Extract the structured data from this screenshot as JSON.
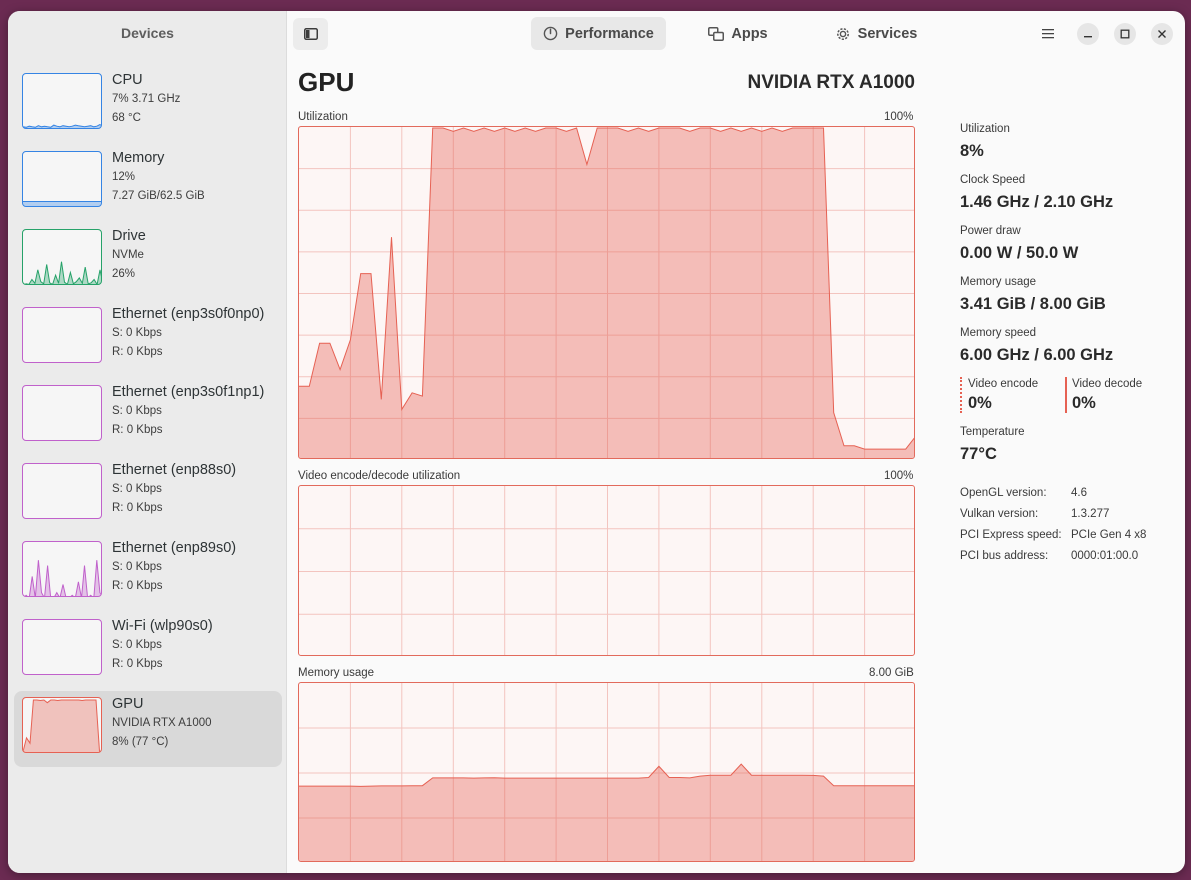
{
  "sidebar": {
    "title": "Devices",
    "items": [
      {
        "name": "CPU",
        "line1": "7% 3.71 GHz",
        "line2": "68 °C",
        "color": "#3584e4",
        "kind": "cpu"
      },
      {
        "name": "Memory",
        "line1": "12%",
        "line2": "7.27 GiB/62.5 GiB",
        "color": "#3584e4",
        "kind": "mem"
      },
      {
        "name": "Drive",
        "line1": "NVMe",
        "line2": "26%",
        "color": "#26a269",
        "kind": "drive"
      },
      {
        "name": "Ethernet (enp3s0f0np0)",
        "line1": "S: 0 Kbps",
        "line2": "R: 0 Kbps",
        "color": "#c061cb",
        "kind": "empty"
      },
      {
        "name": "Ethernet (enp3s0f1np1)",
        "line1": "S: 0 Kbps",
        "line2": "R: 0 Kbps",
        "color": "#c061cb",
        "kind": "empty"
      },
      {
        "name": "Ethernet (enp88s0)",
        "line1": "S: 0 Kbps",
        "line2": "R: 0 Kbps",
        "color": "#c061cb",
        "kind": "empty"
      },
      {
        "name": "Ethernet (enp89s0)",
        "line1": "S: 0 Kbps",
        "line2": "R: 0 Kbps",
        "color": "#c061cb",
        "kind": "eth89"
      },
      {
        "name": "Wi-Fi (wlp90s0)",
        "line1": "S: 0 Kbps",
        "line2": "R: 0 Kbps",
        "color": "#c061cb",
        "kind": "empty"
      },
      {
        "name": "GPU",
        "line1": "NVIDIA RTX A1000",
        "line2": "8% (77 °C)",
        "color": "#e66153",
        "kind": "gpu",
        "selected": true
      }
    ]
  },
  "header": {
    "sidebar_toggle_icon": "sidebar-show-icon",
    "tabs": [
      {
        "label": "Performance",
        "icon": "speedometer-icon",
        "active": true
      },
      {
        "label": "Apps",
        "icon": "windows-icon",
        "active": false
      },
      {
        "label": "Services",
        "icon": "gear-icon",
        "active": false
      }
    ],
    "menu_icon": "hamburger-icon",
    "window_controls": [
      "minimize-icon",
      "maximize-icon",
      "close-icon"
    ]
  },
  "main": {
    "title": "GPU",
    "model": "NVIDIA RTX A1000",
    "graphs": [
      {
        "label": "Utilization",
        "max": "100%"
      },
      {
        "label": "Video encode/decode utilization",
        "max": "100%"
      },
      {
        "label": "Memory usage",
        "max": "8.00 GiB"
      }
    ],
    "accent_color": "#e66153"
  },
  "chart_data": [
    {
      "type": "area",
      "title": "Utilization",
      "ylim": [
        0,
        100
      ],
      "unit": "%",
      "values": [
        22,
        22,
        35,
        35,
        27,
        36,
        56,
        56,
        18,
        67,
        15,
        20,
        19,
        100,
        100,
        99,
        100,
        99,
        100,
        99,
        100,
        99,
        100,
        99,
        100,
        100,
        99,
        100,
        89,
        100,
        100,
        100,
        99,
        100,
        99,
        100,
        100,
        100,
        99,
        100,
        100,
        99,
        100,
        99,
        100,
        99,
        100,
        99,
        100,
        100,
        100,
        100,
        14,
        4,
        4,
        3,
        3,
        3,
        3,
        3,
        7
      ]
    },
    {
      "type": "area",
      "title": "Video encode/decode utilization",
      "ylim": [
        0,
        100
      ],
      "unit": "%",
      "values": [
        0,
        0,
        0,
        0,
        0,
        0,
        0,
        0,
        0,
        0,
        0,
        0,
        0,
        0,
        0,
        0,
        0,
        0,
        0,
        0,
        0,
        0,
        0,
        0,
        0,
        0,
        0,
        0,
        0,
        0,
        0,
        0,
        0,
        0,
        0,
        0,
        0,
        0,
        0,
        0,
        0,
        0,
        0,
        0,
        0,
        0,
        0,
        0,
        0,
        0,
        0,
        0,
        0,
        0,
        0,
        0,
        0,
        0,
        0,
        0,
        0
      ]
    },
    {
      "type": "area",
      "title": "Memory usage",
      "ylim": [
        0,
        8.0
      ],
      "unit": "GiB",
      "values": [
        3.41,
        3.41,
        3.41,
        3.41,
        3.41,
        3.41,
        3.4,
        3.41,
        3.42,
        3.42,
        3.42,
        3.43,
        3.43,
        3.78,
        3.78,
        3.78,
        3.78,
        3.77,
        3.78,
        3.79,
        3.77,
        3.77,
        3.77,
        3.77,
        3.77,
        3.77,
        3.77,
        3.77,
        3.77,
        3.77,
        3.77,
        3.77,
        3.77,
        3.77,
        3.8,
        4.3,
        3.8,
        3.8,
        3.78,
        3.86,
        3.9,
        3.9,
        3.9,
        4.4,
        3.9,
        3.9,
        3.9,
        3.9,
        3.9,
        3.9,
        3.89,
        3.86,
        3.43,
        3.43,
        3.43,
        3.43,
        3.43,
        3.43,
        3.43,
        3.43,
        3.43
      ]
    }
  ],
  "stats": {
    "utilization_label": "Utilization",
    "utilization": "8%",
    "clock_label": "Clock Speed",
    "clock": "1.46 GHz / 2.10 GHz",
    "power_label": "Power draw",
    "power": "0.00 W / 50.0 W",
    "mem_label": "Memory usage",
    "mem": "3.41 GiB / 8.00 GiB",
    "memspeed_label": "Memory speed",
    "memspeed": "6.00 GHz / 6.00 GHz",
    "encode_label": "Video encode",
    "encode": "0%",
    "decode_label": "Video decode",
    "decode": "0%",
    "temp_label": "Temperature",
    "temp": "77°C"
  },
  "info": [
    {
      "key": "OpenGL version:",
      "value": "4.6"
    },
    {
      "key": "Vulkan version:",
      "value": "1.3.277"
    },
    {
      "key": "PCI Express speed:",
      "value": "PCIe Gen 4 x8"
    },
    {
      "key": "PCI bus address:",
      "value": "0000:01:00.0"
    }
  ]
}
